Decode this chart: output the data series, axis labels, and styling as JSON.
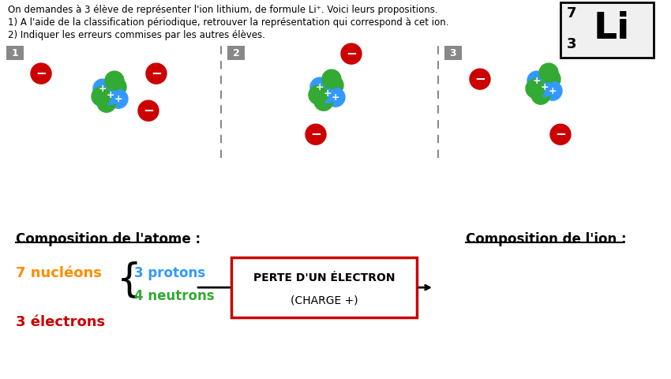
{
  "title_line1": "On demandes à 3 élève de représenter l'ion lithium, de formule Li⁺. Voici leurs propositions.",
  "title_line2": "1) A l'aide de la classification périodique, retrouver la représentation qui correspond à cet ion.",
  "title_line3": "2) Indiquer les erreurs commises par les autres élèves.",
  "bg_top": "#ffffff",
  "bg_bottom": "#c8c8d0",
  "li_symbol": "Li",
  "li_mass": "7",
  "li_atomic": "3",
  "electron_color": "#cc0000",
  "proton_color": "#3399ff",
  "neutron_color": "#33aa33",
  "comp_atom_title": "Composition de l'atome :",
  "comp_ion_title": "Composition de l'ion :",
  "nucleons_text": "7 nucléons",
  "protons_text": "3 protons",
  "neutrons_text": "4 neutrons",
  "electrons_text": "3 électrons",
  "box_text1": "Perte d'un électron",
  "box_text2": "(charge +)",
  "orange_color": "#ff8c00",
  "blue_color": "#3399ff",
  "green_color": "#33aa33",
  "red_color": "#cc0000",
  "box_border_color": "#cc0000"
}
